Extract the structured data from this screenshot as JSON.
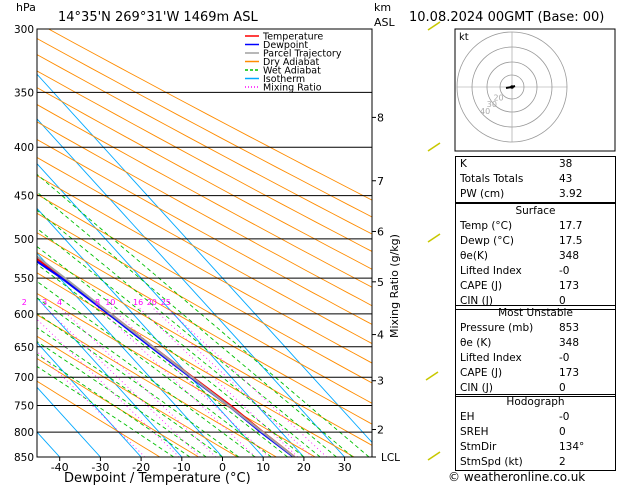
{
  "header": {
    "location": "14°35'N  269°31'W  1469m  ASL",
    "datetime": "10.08.2024  00GMT  (Base: 00)",
    "hpa_label": "hPa",
    "km_label": "km",
    "asl_label": "ASL"
  },
  "chart_data": {
    "type": "line",
    "xlabel": "Dewpoint / Temperature (°C)",
    "ylabel_right": "Mixing Ratio (g/kg)",
    "x_ticks": [
      -40,
      -30,
      -20,
      -10,
      0,
      10,
      20,
      30
    ],
    "xlim": [
      -44,
      35
    ],
    "ylim_hpa": [
      850,
      300
    ],
    "pressure_levels": [
      300,
      350,
      400,
      450,
      500,
      550,
      600,
      650,
      700,
      750,
      800,
      850
    ],
    "km_ticks": [
      {
        "km": "8",
        "p": 372
      },
      {
        "km": "7",
        "p": 434
      },
      {
        "km": "6",
        "p": 491
      },
      {
        "km": "5",
        "p": 555
      },
      {
        "km": "4",
        "p": 631
      },
      {
        "km": "3",
        "p": 706
      },
      {
        "km": "2",
        "p": 795
      }
    ],
    "lcl_label": "LCL",
    "lcl_hpa": 850,
    "mixing_ratio_labels": [
      "1",
      "2",
      "3",
      "4",
      "8",
      "10",
      "16",
      "20",
      "25"
    ],
    "mixing_ratio_values": [
      1,
      2,
      3,
      4,
      8,
      10,
      16,
      20,
      25
    ],
    "mixing_ratio_label_p": 590,
    "legend": [
      "Temperature",
      "Dewpoint",
      "Parcel Trajectory",
      "Dry Adiabat",
      "Wet Adiabat",
      "Isotherm",
      "Mixing Ratio"
    ],
    "legend_placement": "top-left",
    "series": [
      {
        "name": "Temperature",
        "color": "#ff0000",
        "points": [
          [
            850,
            17.7
          ],
          [
            800,
            15.5
          ],
          [
            750,
            13.5
          ],
          [
            700,
            10.5
          ],
          [
            650,
            7.5
          ],
          [
            600,
            4.5
          ],
          [
            550,
            1.0
          ],
          [
            500,
            -3.5
          ],
          [
            450,
            -9.0
          ],
          [
            400,
            -16.0
          ],
          [
            350,
            -24.0
          ]
        ]
      },
      {
        "name": "Dewpoint",
        "color": "#0000ff",
        "points": [
          [
            850,
            17.5
          ],
          [
            800,
            15.0
          ],
          [
            750,
            13.0
          ],
          [
            700,
            10.0
          ],
          [
            650,
            7.0
          ],
          [
            600,
            4.0
          ],
          [
            550,
            0.5
          ],
          [
            500,
            -5.0
          ],
          [
            450,
            -11.5
          ],
          [
            400,
            -18.5
          ],
          [
            350,
            -27.0
          ],
          [
            300,
            -37.0
          ]
        ]
      },
      {
        "name": "Parcel Trajectory",
        "color": "#a0a0a0",
        "points": [
          [
            850,
            17.7
          ],
          [
            800,
            15.4
          ],
          [
            750,
            13.0
          ],
          [
            700,
            10.3
          ],
          [
            650,
            7.5
          ],
          [
            600,
            4.5
          ],
          [
            550,
            1.3
          ],
          [
            500,
            -2.5
          ],
          [
            450,
            -7.5
          ],
          [
            400,
            -13.5
          ],
          [
            350,
            -21.5
          ]
        ]
      }
    ],
    "colors": {
      "temperature": "#ff0000",
      "dewpoint": "#0000ff",
      "parcel": "#a0a0a0",
      "dry_adiabat": "#ff8c00",
      "wet_adiabat": "#00c000",
      "isotherm": "#00a8ff",
      "mixing_ratio": "#ff00ff",
      "wind_barb": "#c8c800"
    }
  },
  "hodograph": {
    "label": "kt",
    "ring_labels": [
      "40",
      "30",
      "20"
    ]
  },
  "indices": {
    "K": "38",
    "Totals Totals": "43",
    "PW (cm)": "3.92"
  },
  "surface": {
    "title": "Surface",
    "rows": [
      [
        "Temp (°C)",
        "17.7"
      ],
      [
        "Dewp (°C)",
        "17.5"
      ],
      [
        "θe(K)",
        "348"
      ],
      [
        "Lifted Index",
        "-0"
      ],
      [
        "CAPE (J)",
        "173"
      ],
      [
        "CIN (J)",
        "0"
      ]
    ]
  },
  "most_unstable": {
    "title": "Most Unstable",
    "rows": [
      [
        "Pressure (mb)",
        "853"
      ],
      [
        "θe (K)",
        "348"
      ],
      [
        "Lifted Index",
        "-0"
      ],
      [
        "CAPE (J)",
        "173"
      ],
      [
        "CIN (J)",
        "0"
      ]
    ]
  },
  "hodograph_table": {
    "title": "Hodograph",
    "rows": [
      [
        "EH",
        "-0"
      ],
      [
        "SREH",
        "0"
      ],
      [
        "StmDir",
        "134°"
      ],
      [
        "StmSpd (kt)",
        "2"
      ]
    ]
  },
  "credit": "© weatheronline.co.uk"
}
